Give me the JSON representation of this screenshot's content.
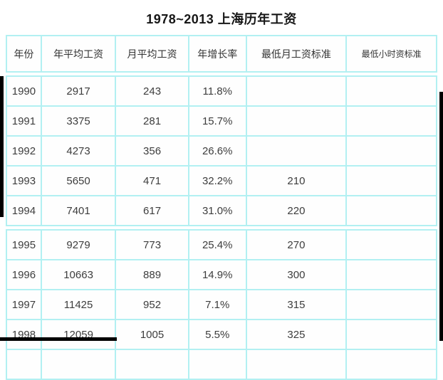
{
  "title": "1978~2013 上海历年工资",
  "chart_data": {
    "type": "table",
    "title": "1978~2013 上海历年工资",
    "columns": [
      "年份",
      "年平均工资",
      "月平均工资",
      "年增长率",
      "最低月工资标准",
      "最低小时资标准"
    ],
    "rows": [
      [
        "1990",
        "2917",
        "243",
        "11.8%",
        "",
        ""
      ],
      [
        "1991",
        "3375",
        "281",
        "15.7%",
        "",
        ""
      ],
      [
        "1992",
        "4273",
        "356",
        "26.6%",
        "",
        ""
      ],
      [
        "1993",
        "5650",
        "471",
        "32.2%",
        "210",
        ""
      ],
      [
        "1994",
        "7401",
        "617",
        "31.0%",
        "220",
        ""
      ],
      [
        "1995",
        "9279",
        "773",
        "25.4%",
        "270",
        ""
      ],
      [
        "1996",
        "10663",
        "889",
        "14.9%",
        "300",
        ""
      ],
      [
        "1997",
        "11425",
        "952",
        "7.1%",
        "315",
        ""
      ],
      [
        "1998",
        "12059",
        "1005",
        "5.5%",
        "325",
        ""
      ]
    ],
    "segment_split_after_row": 5,
    "partial_row_at_bottom": true,
    "column_widths_pct": [
      8.1,
      17.3,
      17.0,
      13.4,
      23.3,
      21.0
    ],
    "layout": {
      "grid": true,
      "border_color": "#b2f0f2"
    }
  },
  "colors": {
    "border": "#b2f0f2",
    "text": "#3d3d3d",
    "title": "#161616",
    "background": "#ffffff",
    "artifact": "#000000"
  }
}
